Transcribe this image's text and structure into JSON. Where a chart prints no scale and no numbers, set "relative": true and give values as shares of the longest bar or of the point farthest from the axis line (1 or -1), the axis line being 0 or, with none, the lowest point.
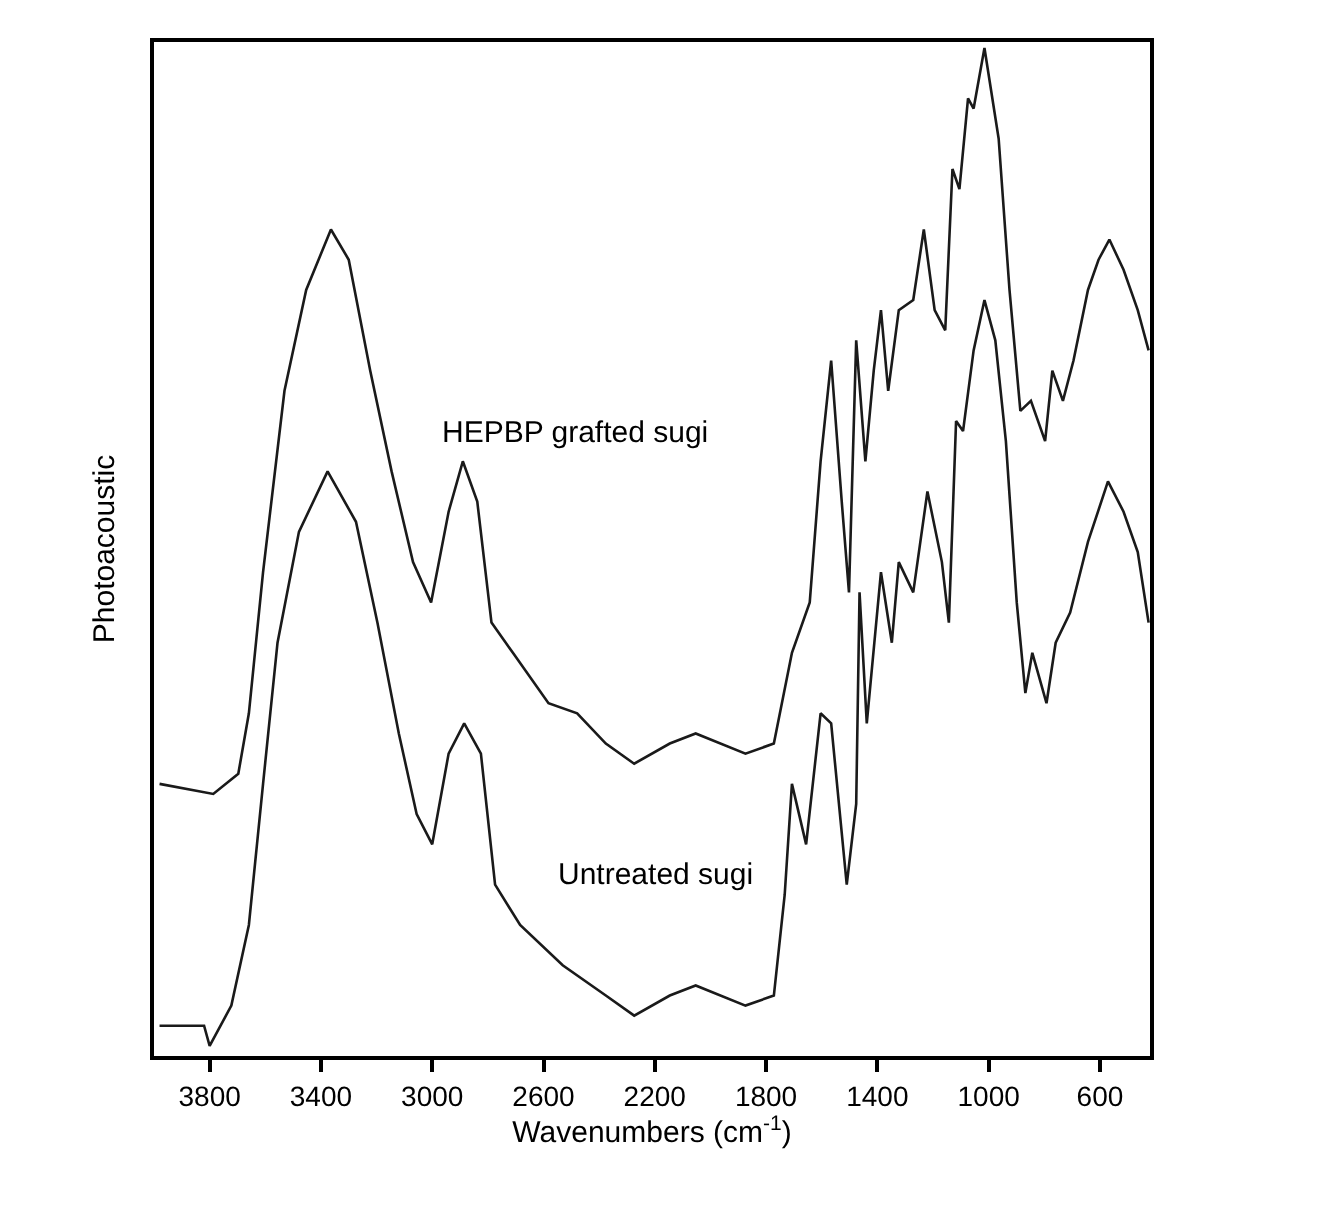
{
  "chart_data": {
    "type": "line",
    "relative": true,
    "xlabel": "Wavenumbers (cm$^{-1}$)",
    "ylabel": "Photoacoustic",
    "xlim": [
      4000,
      420
    ],
    "xticks": [
      3800,
      3400,
      3000,
      2600,
      2200,
      1800,
      1400,
      1000,
      600
    ],
    "legend": false,
    "marker": "none",
    "line_style": "solid",
    "series": [
      {
        "name": "HEPBP grafted sugi",
        "color": "#1a1a1a",
        "x": [
          3980,
          3787,
          3697,
          3659,
          3608,
          3531,
          3453,
          3364,
          3300,
          3223,
          3146,
          3069,
          3004,
          2941,
          2890,
          2838,
          2787,
          2710,
          2582,
          2479,
          2376,
          2274,
          2146,
          2053,
          1874,
          1772,
          1707,
          1643,
          1604,
          1566,
          1528,
          1502,
          1476,
          1443,
          1413,
          1387,
          1361,
          1323,
          1271,
          1233,
          1194,
          1156,
          1130,
          1105,
          1074,
          1054,
          1015,
          964,
          925,
          886,
          848,
          797,
          771,
          733,
          695,
          643,
          605,
          566,
          515,
          464,
          425
        ],
        "values": [
          0.27,
          0.26,
          0.28,
          0.34,
          0.48,
          0.66,
          0.76,
          0.82,
          0.79,
          0.68,
          0.58,
          0.49,
          0.45,
          0.54,
          0.59,
          0.55,
          0.43,
          0.4,
          0.35,
          0.34,
          0.31,
          0.29,
          0.31,
          0.32,
          0.3,
          0.31,
          0.4,
          0.45,
          0.59,
          0.69,
          0.55,
          0.46,
          0.71,
          0.59,
          0.68,
          0.74,
          0.66,
          0.74,
          0.75,
          0.82,
          0.74,
          0.72,
          0.88,
          0.86,
          0.95,
          0.94,
          1.0,
          0.91,
          0.76,
          0.64,
          0.65,
          0.61,
          0.68,
          0.65,
          0.69,
          0.76,
          0.79,
          0.81,
          0.78,
          0.74,
          0.7
        ]
      },
      {
        "name": "Untreated sugi",
        "color": "#1a1a1a",
        "x": [
          3980,
          3820,
          3800,
          3722,
          3659,
          3608,
          3556,
          3479,
          3376,
          3274,
          3197,
          3120,
          3056,
          3000,
          2941,
          2885,
          2825,
          2774,
          2684,
          2531,
          2376,
          2274,
          2146,
          2053,
          1874,
          1772,
          1733,
          1707,
          1656,
          1604,
          1566,
          1510,
          1476,
          1464,
          1438,
          1387,
          1348,
          1323,
          1271,
          1220,
          1168,
          1143,
          1117,
          1092,
          1054,
          1015,
          976,
          938,
          899,
          868,
          843,
          792,
          759,
          707,
          643,
          571,
          515,
          464,
          425
        ],
        "values": [
          0.03,
          0.03,
          0.01,
          0.05,
          0.13,
          0.27,
          0.41,
          0.52,
          0.58,
          0.53,
          0.43,
          0.32,
          0.24,
          0.21,
          0.3,
          0.33,
          0.3,
          0.17,
          0.13,
          0.09,
          0.06,
          0.04,
          0.06,
          0.07,
          0.05,
          0.06,
          0.16,
          0.27,
          0.21,
          0.34,
          0.33,
          0.17,
          0.25,
          0.46,
          0.33,
          0.48,
          0.41,
          0.49,
          0.46,
          0.56,
          0.49,
          0.43,
          0.63,
          0.62,
          0.7,
          0.75,
          0.71,
          0.61,
          0.45,
          0.36,
          0.4,
          0.35,
          0.41,
          0.44,
          0.51,
          0.57,
          0.54,
          0.5,
          0.43
        ]
      }
    ]
  }
}
